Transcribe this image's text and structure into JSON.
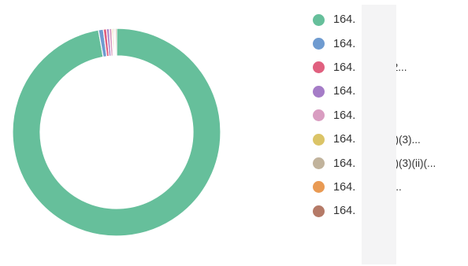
{
  "chart_data": {
    "type": "pie",
    "donut": true,
    "title": "",
    "slices": [
      {
        "label": "164.",
        "value": 97.2,
        "color": "#66bf9b"
      },
      {
        "label": "164.",
        "value": 0.75,
        "color": "#6f9bd0"
      },
      {
        "label": "164.",
        "value": 0.5,
        "color": "#e0607f",
        "suffix": ".2..."
      },
      {
        "label": "164.",
        "value": 0.4,
        "color": "#a57cc7"
      },
      {
        "label": "164.",
        "value": 0.4,
        "color": "#d99dc1"
      },
      {
        "label": "164.",
        "value": 0.2,
        "color": "#dbc467",
        "suffix": "a)(3)..."
      },
      {
        "label": "164.",
        "value": 0.2,
        "color": "#c1b39c",
        "suffix": "a)(3)(ii)(..."
      },
      {
        "label": "164.",
        "value": 0.15,
        "color": "#e99a53",
        "suffix": ")..."
      },
      {
        "label": "164.",
        "value": 0.2,
        "color": "#b57a67"
      }
    ],
    "legend_position": "right"
  }
}
